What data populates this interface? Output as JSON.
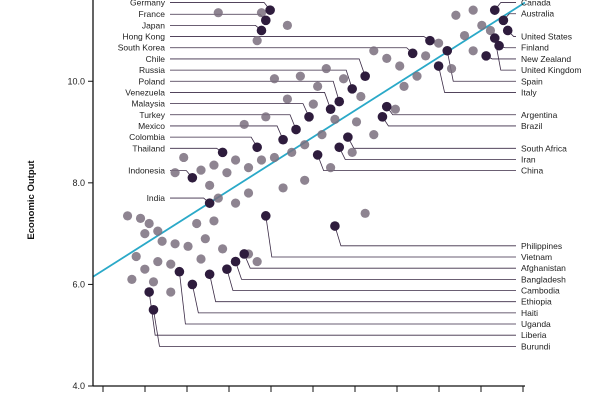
{
  "chart_data": {
    "type": "scatter",
    "title": "",
    "xlabel": "",
    "ylabel": "Economic Output",
    "ylim": [
      4.0,
      11.6
    ],
    "xlim": [
      0,
      100
    ],
    "y_ticks": [
      "4.0",
      "6.0",
      "8.0",
      "10.0"
    ],
    "grid": false,
    "colors": {
      "fit_line": "#2aa9c8",
      "dot_light": "#7a6f7e",
      "dot_dark": "#2e1c3d",
      "leader": "#3a2a45"
    },
    "fit_line": {
      "x": [
        0,
        100
      ],
      "y": [
        6.15,
        11.55
      ]
    },
    "labeled_points": [
      {
        "name": "Germany",
        "x": 41,
        "y": 11.4,
        "label_y": 11.55,
        "side": "left"
      },
      {
        "name": "France",
        "x": 40,
        "y": 11.2,
        "label_y": 11.32,
        "side": "left"
      },
      {
        "name": "Japan",
        "x": 39,
        "y": 11.0,
        "label_y": 11.1,
        "side": "left"
      },
      {
        "name": "Hong Kong",
        "x": 78,
        "y": 10.8,
        "label_y": 10.88,
        "side": "left"
      },
      {
        "name": "South Korea",
        "x": 74,
        "y": 10.55,
        "label_y": 10.66,
        "side": "left"
      },
      {
        "name": "Chile",
        "x": 63,
        "y": 10.1,
        "label_y": 10.44,
        "side": "left"
      },
      {
        "name": "Russia",
        "x": 60,
        "y": 9.85,
        "label_y": 10.22,
        "side": "left"
      },
      {
        "name": "Poland",
        "x": 57,
        "y": 9.6,
        "label_y": 10.0,
        "side": "left"
      },
      {
        "name": "Venezuela",
        "x": 55,
        "y": 9.45,
        "label_y": 9.78,
        "side": "left"
      },
      {
        "name": "Malaysia",
        "x": 50,
        "y": 9.3,
        "label_y": 9.56,
        "side": "left"
      },
      {
        "name": "Turkey",
        "x": 47,
        "y": 9.05,
        "label_y": 9.34,
        "side": "left"
      },
      {
        "name": "Mexico",
        "x": 44,
        "y": 8.85,
        "label_y": 9.12,
        "side": "left"
      },
      {
        "name": "Colombia",
        "x": 38,
        "y": 8.7,
        "label_y": 8.9,
        "side": "left"
      },
      {
        "name": "Thailand",
        "x": 30,
        "y": 8.6,
        "label_y": 8.68,
        "side": "left"
      },
      {
        "name": "Indonesia",
        "x": 23,
        "y": 8.1,
        "label_y": 8.24,
        "side": "left"
      },
      {
        "name": "India",
        "x": 27,
        "y": 7.6,
        "label_y": 7.7,
        "side": "left"
      },
      {
        "name": "Canada",
        "x": 93,
        "y": 11.4,
        "label_y": 11.55,
        "side": "right"
      },
      {
        "name": "Australia",
        "x": 95,
        "y": 11.2,
        "label_y": 11.33,
        "side": "right"
      },
      {
        "name": "United States",
        "x": 96,
        "y": 11.0,
        "label_y": 10.88,
        "side": "right"
      },
      {
        "name": "Finland",
        "x": 94,
        "y": 10.7,
        "label_y": 10.66,
        "side": "right"
      },
      {
        "name": "New Zealand",
        "x": 91,
        "y": 10.5,
        "label_y": 10.44,
        "side": "right"
      },
      {
        "name": "United Kingdom",
        "x": 93,
        "y": 10.85,
        "label_y": 10.22,
        "side": "right"
      },
      {
        "name": "Spain",
        "x": 82,
        "y": 10.6,
        "label_y": 10.0,
        "side": "right"
      },
      {
        "name": "Italy",
        "x": 80,
        "y": 10.3,
        "label_y": 9.78,
        "side": "right"
      },
      {
        "name": "Argentina",
        "x": 68,
        "y": 9.5,
        "label_y": 9.34,
        "side": "right"
      },
      {
        "name": "Brazil",
        "x": 67,
        "y": 9.3,
        "label_y": 9.12,
        "side": "right"
      },
      {
        "name": "South Africa",
        "x": 59,
        "y": 8.9,
        "label_y": 8.68,
        "side": "right"
      },
      {
        "name": "Iran",
        "x": 57,
        "y": 8.7,
        "label_y": 8.46,
        "side": "right"
      },
      {
        "name": "China",
        "x": 52,
        "y": 8.55,
        "label_y": 8.24,
        "side": "right"
      },
      {
        "name": "Philippines",
        "x": 56,
        "y": 7.15,
        "label_y": 6.76,
        "side": "right"
      },
      {
        "name": "Vietnam",
        "x": 40,
        "y": 7.35,
        "label_y": 6.54,
        "side": "right"
      },
      {
        "name": "Afghanistan",
        "x": 35,
        "y": 6.6,
        "label_y": 6.32,
        "side": "right"
      },
      {
        "name": "Bangladesh",
        "x": 33,
        "y": 6.45,
        "label_y": 6.1,
        "side": "right"
      },
      {
        "name": "Cambodia",
        "x": 31,
        "y": 6.3,
        "label_y": 5.88,
        "side": "right"
      },
      {
        "name": "Ethiopia",
        "x": 27,
        "y": 6.2,
        "label_y": 5.66,
        "side": "right"
      },
      {
        "name": "Haiti",
        "x": 23,
        "y": 6.0,
        "label_y": 5.44,
        "side": "right"
      },
      {
        "name": "Uganda",
        "x": 20,
        "y": 6.25,
        "label_y": 5.22,
        "side": "right"
      },
      {
        "name": "Liberia",
        "x": 13,
        "y": 5.85,
        "label_y": 5.0,
        "side": "right"
      },
      {
        "name": "Burundi",
        "x": 14,
        "y": 5.5,
        "label_y": 4.78,
        "side": "right"
      }
    ],
    "other_points": [
      {
        "x": 29,
        "y": 11.35
      },
      {
        "x": 39,
        "y": 11.35
      },
      {
        "x": 45,
        "y": 11.1
      },
      {
        "x": 38,
        "y": 10.8
      },
      {
        "x": 88,
        "y": 11.4
      },
      {
        "x": 84,
        "y": 11.3
      },
      {
        "x": 90,
        "y": 11.1
      },
      {
        "x": 92,
        "y": 11.0
      },
      {
        "x": 86,
        "y": 10.9
      },
      {
        "x": 80,
        "y": 10.75
      },
      {
        "x": 77,
        "y": 10.5
      },
      {
        "x": 88,
        "y": 10.6
      },
      {
        "x": 83,
        "y": 10.25
      },
      {
        "x": 75,
        "y": 10.1
      },
      {
        "x": 71,
        "y": 10.3
      },
      {
        "x": 68,
        "y": 10.45
      },
      {
        "x": 65,
        "y": 10.6
      },
      {
        "x": 72,
        "y": 9.9
      },
      {
        "x": 62,
        "y": 9.7
      },
      {
        "x": 58,
        "y": 10.05
      },
      {
        "x": 54,
        "y": 10.25
      },
      {
        "x": 52,
        "y": 9.9
      },
      {
        "x": 48,
        "y": 10.1
      },
      {
        "x": 42,
        "y": 10.05
      },
      {
        "x": 45,
        "y": 9.65
      },
      {
        "x": 40,
        "y": 9.3
      },
      {
        "x": 35,
        "y": 9.15
      },
      {
        "x": 51,
        "y": 9.55
      },
      {
        "x": 56,
        "y": 9.25
      },
      {
        "x": 61,
        "y": 9.2
      },
      {
        "x": 53,
        "y": 8.95
      },
      {
        "x": 49,
        "y": 8.75
      },
      {
        "x": 46,
        "y": 8.6
      },
      {
        "x": 42,
        "y": 8.5
      },
      {
        "x": 39,
        "y": 8.45
      },
      {
        "x": 36,
        "y": 8.3
      },
      {
        "x": 33,
        "y": 8.45
      },
      {
        "x": 31,
        "y": 8.2
      },
      {
        "x": 28,
        "y": 8.35
      },
      {
        "x": 25,
        "y": 8.25
      },
      {
        "x": 21,
        "y": 8.5
      },
      {
        "x": 19,
        "y": 8.2
      },
      {
        "x": 27,
        "y": 7.95
      },
      {
        "x": 29,
        "y": 7.7
      },
      {
        "x": 33,
        "y": 7.6
      },
      {
        "x": 36,
        "y": 7.8
      },
      {
        "x": 44,
        "y": 7.9
      },
      {
        "x": 49,
        "y": 8.05
      },
      {
        "x": 55,
        "y": 8.3
      },
      {
        "x": 60,
        "y": 8.6
      },
      {
        "x": 65,
        "y": 8.95
      },
      {
        "x": 70,
        "y": 9.45
      },
      {
        "x": 63,
        "y": 7.4
      },
      {
        "x": 8,
        "y": 7.35
      },
      {
        "x": 11,
        "y": 7.3
      },
      {
        "x": 13,
        "y": 7.2
      },
      {
        "x": 15,
        "y": 7.05
      },
      {
        "x": 12,
        "y": 7.0
      },
      {
        "x": 16,
        "y": 6.85
      },
      {
        "x": 19,
        "y": 6.8
      },
      {
        "x": 22,
        "y": 6.75
      },
      {
        "x": 26,
        "y": 6.9
      },
      {
        "x": 24,
        "y": 7.2
      },
      {
        "x": 28,
        "y": 7.25
      },
      {
        "x": 10,
        "y": 6.55
      },
      {
        "x": 12,
        "y": 6.3
      },
      {
        "x": 15,
        "y": 6.45
      },
      {
        "x": 18,
        "y": 6.4
      },
      {
        "x": 9,
        "y": 6.1
      },
      {
        "x": 14,
        "y": 6.05
      },
      {
        "x": 36,
        "y": 6.6
      },
      {
        "x": 38,
        "y": 6.45
      },
      {
        "x": 30,
        "y": 6.7
      },
      {
        "x": 25,
        "y": 6.5
      },
      {
        "x": 18,
        "y": 5.85
      }
    ]
  }
}
